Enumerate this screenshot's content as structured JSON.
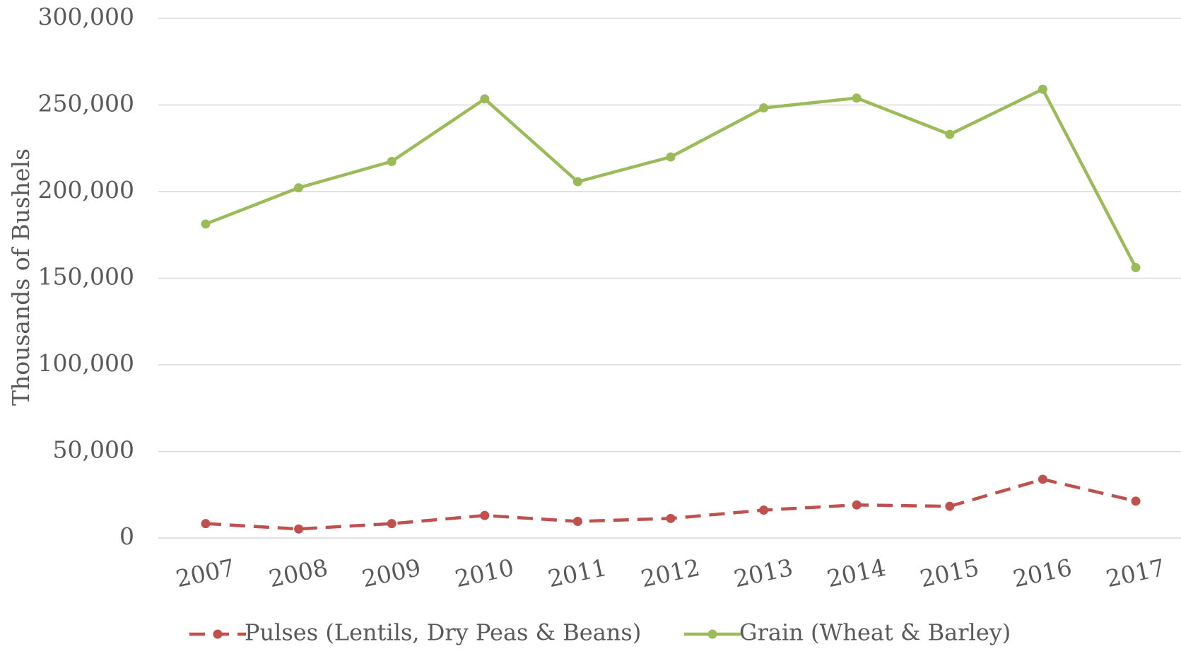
{
  "chart_data": {
    "type": "line",
    "y_label": "Thousands of Bushels",
    "categories": [
      "2007",
      "2008",
      "2009",
      "2010",
      "2011",
      "2012",
      "2013",
      "2014",
      "2015",
      "2016",
      "2017"
    ],
    "series": [
      {
        "name": "Pulses (Lentils, Dry Peas & Beans)",
        "color": "#c0504d",
        "dashed": true,
        "values": [
          8300,
          5200,
          8300,
          13000,
          9600,
          11300,
          16100,
          19100,
          18300,
          33900,
          21300
        ]
      },
      {
        "name": "Grain (Wheat & Barley)",
        "color": "#9bbb59",
        "dashed": false,
        "values": [
          181300,
          202200,
          217400,
          253500,
          205700,
          220000,
          248300,
          254000,
          233000,
          259100,
          156100
        ]
      }
    ],
    "ylim": [
      0,
      300000
    ],
    "yticks": [
      0,
      {
        "value": 50000,
        "label": "50,000"
      },
      {
        "value": 100000,
        "label": "100,000"
      },
      {
        "value": 150000,
        "label": "150,000"
      },
      {
        "value": 200000,
        "label": "200,000"
      },
      {
        "value": 250000,
        "label": "250,000"
      },
      {
        "value": 300000,
        "label": "300,000"
      }
    ],
    "grid": true,
    "legend": "bottom"
  }
}
